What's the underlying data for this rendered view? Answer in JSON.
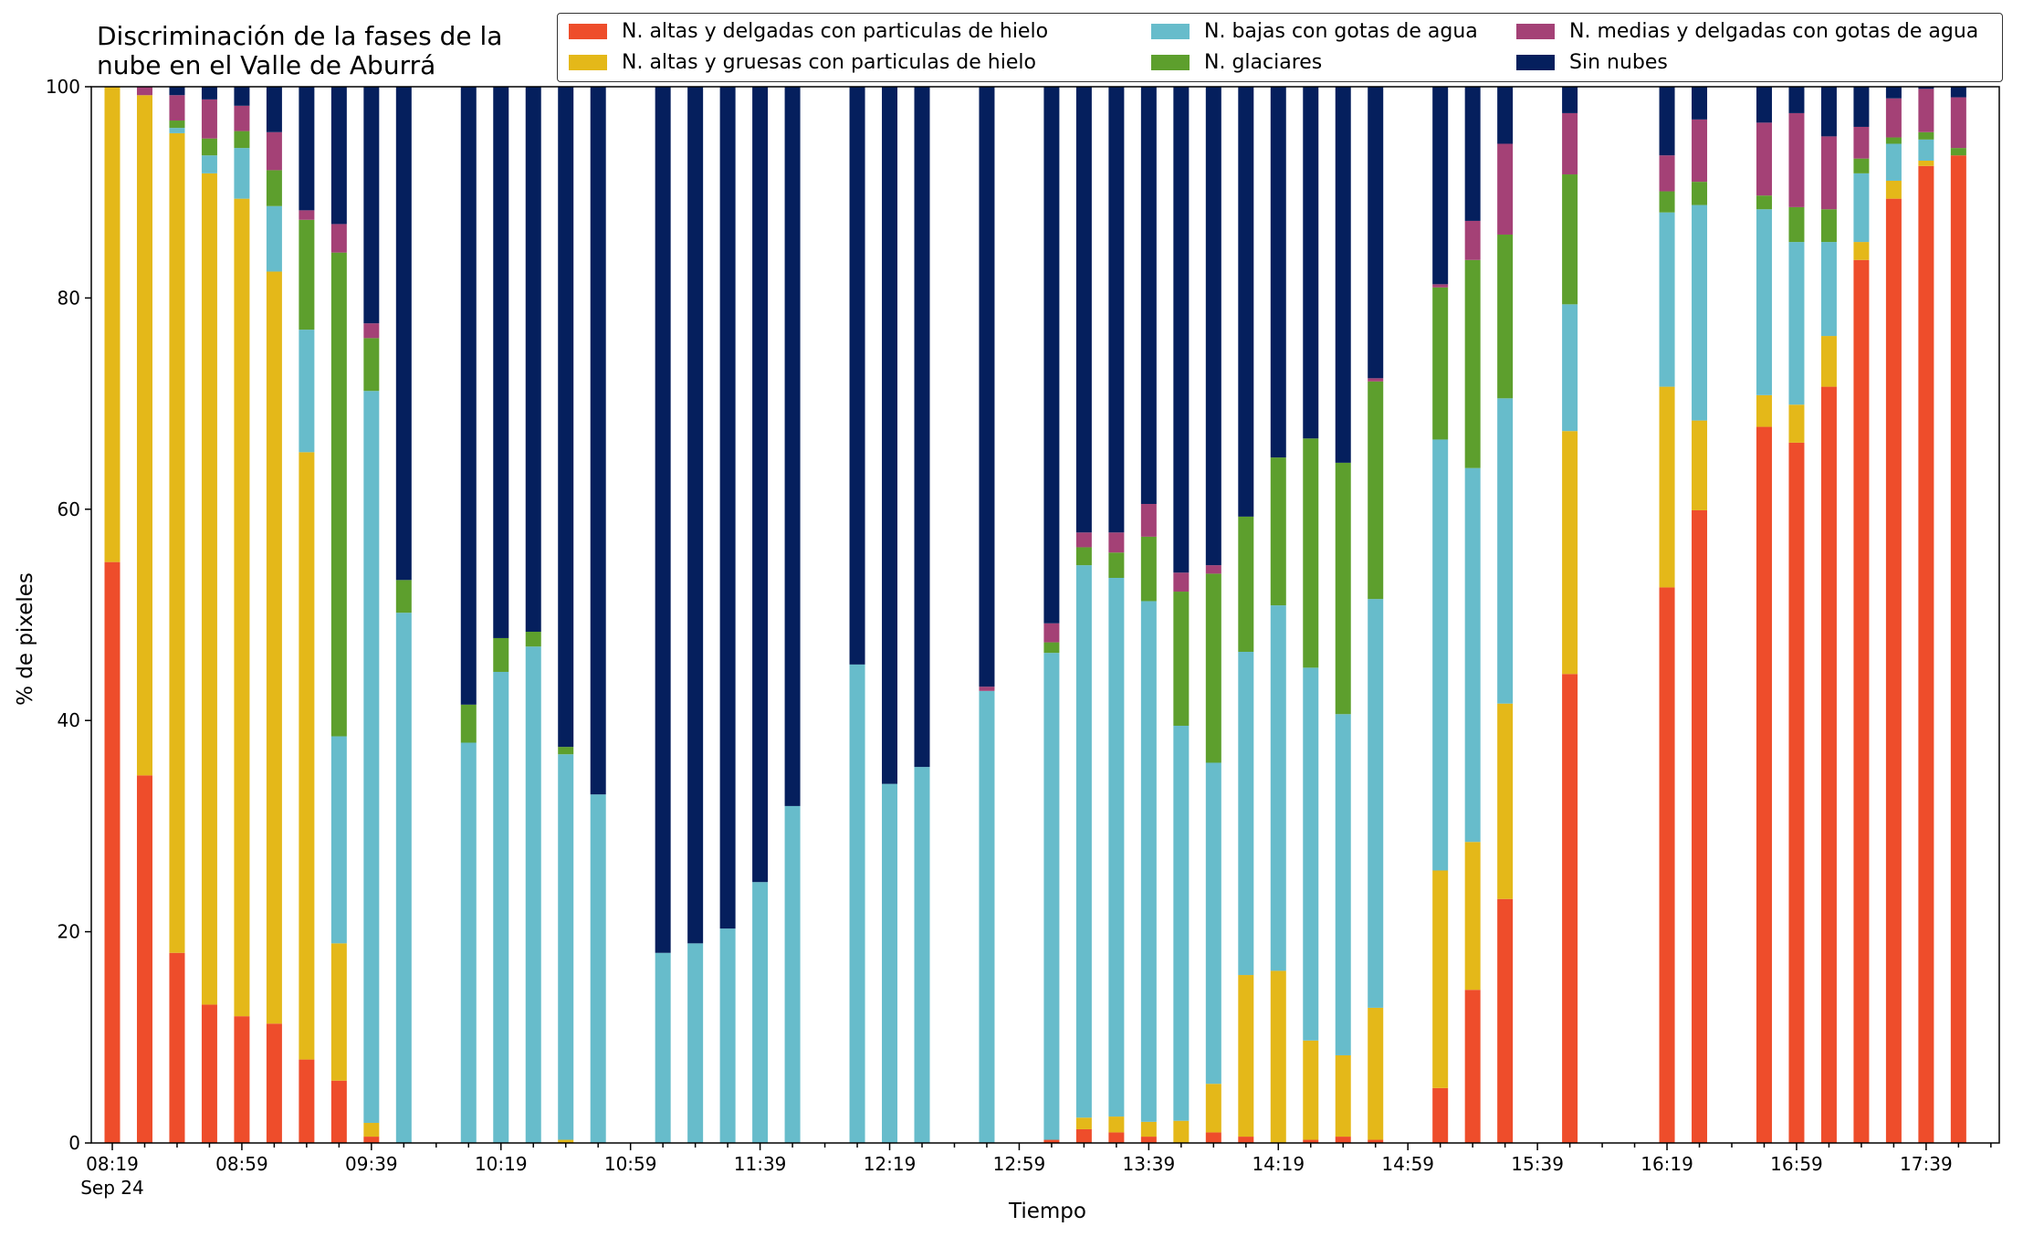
{
  "chart_data": {
    "type": "bar",
    "stacked": true,
    "title": "Discriminación de la fases de la\nnube en el Valle de Aburrá",
    "xlabel": "Tiempo",
    "ylabel": "% de pixeles",
    "ylim": [
      0,
      100
    ],
    "yticks": [
      0,
      20,
      40,
      60,
      80,
      100
    ],
    "grid": false,
    "legend_position": "top-right",
    "xticks_major": [
      "08:19",
      "08:59",
      "09:39",
      "10:19",
      "10:59",
      "11:39",
      "12:19",
      "12:59",
      "13:39",
      "14:19",
      "14:59",
      "15:39",
      "16:19",
      "16:59",
      "17:39"
    ],
    "xtick_date_label": "Sep 24",
    "x_start": "08:19",
    "x_end": "18:00",
    "bar_times": [
      "08:19",
      "08:29",
      "08:39",
      "08:49",
      "08:59",
      "09:09",
      "09:19",
      "09:29",
      "09:39",
      "09:49",
      "10:09",
      "10:19",
      "10:29",
      "10:39",
      "10:49",
      "11:09",
      "11:19",
      "11:29",
      "11:39",
      "11:49",
      "12:09",
      "12:19",
      "12:29",
      "12:49",
      "13:09",
      "13:19",
      "13:29",
      "13:39",
      "13:49",
      "13:59",
      "14:09",
      "14:19",
      "14:29",
      "14:39",
      "14:49",
      "15:09",
      "15:19",
      "15:29",
      "15:49",
      "16:19",
      "16:29",
      "16:49",
      "16:59",
      "17:09",
      "17:19",
      "17:29",
      "17:39",
      "17:49"
    ],
    "series": [
      {
        "name": "N. altas y delgadas con particulas de hielo",
        "color": "#ee4d2b",
        "values": [
          55.0,
          34.8,
          18.0,
          13.1,
          12.0,
          11.3,
          7.9,
          5.9,
          0.6,
          0,
          0,
          0,
          0,
          0,
          0,
          0,
          0,
          0,
          0,
          0,
          0,
          0,
          0,
          0,
          0.3,
          1.3,
          1.0,
          0.6,
          0,
          1.0,
          0.6,
          0,
          0.3,
          0.6,
          0.3,
          5.2,
          14.5,
          23.1,
          44.4,
          52.6,
          59.9,
          67.8,
          66.3,
          71.6,
          83.6,
          89.4,
          92.5,
          93.5
        ]
      },
      {
        "name": "N. altas y gruesas con particulas de hielo",
        "color": "#e4b819",
        "values": [
          45.0,
          64.4,
          77.6,
          78.7,
          77.4,
          71.2,
          57.5,
          13.0,
          1.3,
          0,
          0,
          0,
          0,
          0.3,
          0,
          0,
          0,
          0,
          0,
          0,
          0,
          0,
          0,
          0,
          0,
          1.1,
          1.5,
          1.4,
          2.1,
          4.6,
          15.3,
          16.3,
          9.4,
          7.7,
          12.5,
          20.6,
          14.0,
          18.5,
          23.0,
          19.0,
          8.5,
          3.0,
          3.6,
          4.8,
          1.7,
          1.7,
          0.5,
          0
        ]
      },
      {
        "name": "N. bajas con gotas de agua",
        "color": "#67bccb",
        "values": [
          0,
          0,
          0.5,
          1.7,
          4.8,
          6.2,
          11.6,
          19.6,
          69.3,
          50.2,
          37.9,
          44.6,
          47.0,
          36.5,
          33.0,
          18.0,
          18.9,
          20.3,
          24.7,
          31.9,
          45.3,
          34.0,
          35.6,
          42.8,
          46.1,
          52.3,
          51.0,
          49.3,
          37.4,
          30.4,
          30.6,
          34.6,
          35.3,
          32.3,
          38.7,
          40.8,
          35.4,
          28.9,
          12.0,
          16.5,
          20.4,
          17.6,
          15.4,
          8.9,
          6.5,
          3.5,
          2.0,
          0
        ]
      },
      {
        "name": "N. glaciares",
        "color": "#5d9f2d",
        "values": [
          0,
          0,
          0.7,
          1.6,
          1.6,
          3.4,
          10.4,
          45.8,
          5.0,
          3.1,
          3.6,
          3.2,
          1.4,
          0.7,
          0,
          0,
          0,
          0,
          0,
          0,
          0,
          0,
          0,
          0,
          1.0,
          1.7,
          2.4,
          6.1,
          12.7,
          17.9,
          12.8,
          14.0,
          21.7,
          23.8,
          20.6,
          14.4,
          19.7,
          15.5,
          12.3,
          2.0,
          2.2,
          1.3,
          3.3,
          3.1,
          1.4,
          0.6,
          0.7,
          0.7
        ]
      },
      {
        "name": "N. medias y delgadas con gotas de agua",
        "color": "#a44176",
        "values": [
          0,
          0.8,
          2.4,
          3.7,
          2.4,
          3.6,
          0.9,
          2.7,
          1.4,
          0,
          0,
          0,
          0,
          0,
          0,
          0,
          0,
          0,
          0,
          0,
          0,
          0,
          0,
          0.4,
          1.8,
          1.4,
          1.9,
          3.1,
          1.8,
          0.8,
          0,
          0,
          0,
          0,
          0.3,
          0.3,
          3.7,
          8.6,
          5.8,
          3.4,
          5.9,
          6.9,
          8.9,
          6.9,
          3.0,
          3.7,
          4.1,
          4.8
        ]
      },
      {
        "name": "Sin nubes",
        "color": "#051f5d",
        "values": [
          0,
          0,
          0.8,
          1.2,
          1.8,
          4.3,
          11.7,
          13.0,
          22.4,
          46.7,
          58.5,
          52.2,
          51.6,
          62.5,
          67.0,
          82.0,
          81.1,
          79.7,
          75.3,
          68.1,
          54.7,
          66.0,
          64.4,
          56.8,
          50.8,
          42.2,
          42.2,
          39.5,
          46.0,
          45.3,
          40.7,
          35.1,
          33.3,
          35.6,
          27.6,
          18.7,
          12.7,
          5.4,
          2.5,
          6.5,
          3.1,
          3.4,
          2.5,
          4.7,
          3.8,
          1.1,
          0.2,
          1.0
        ]
      }
    ]
  }
}
